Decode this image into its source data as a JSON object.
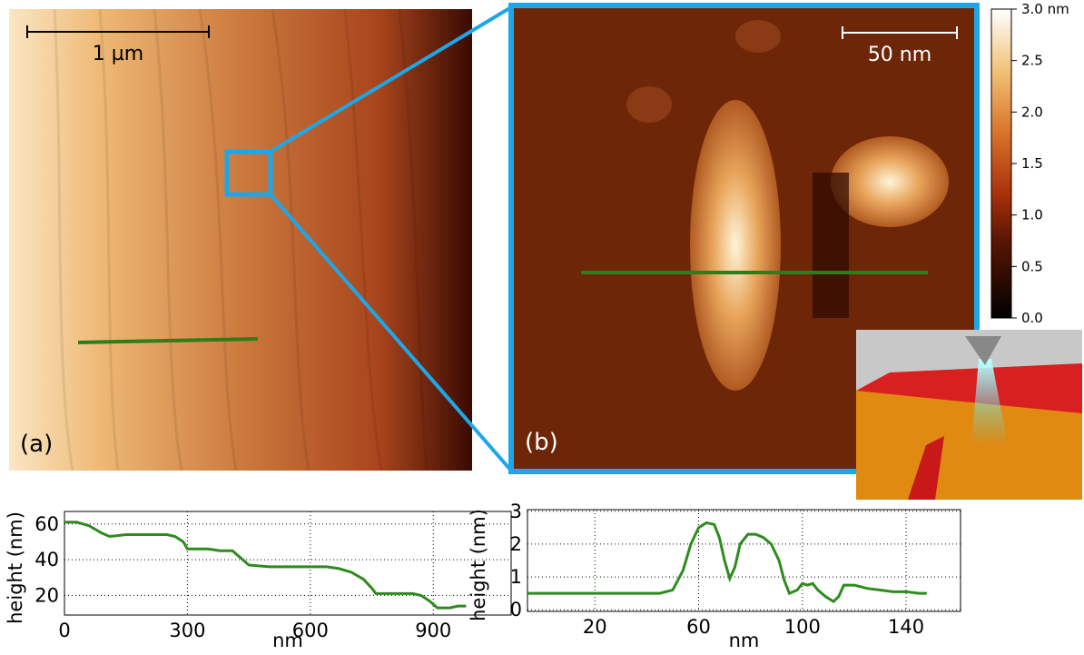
{
  "panels": {
    "a": {
      "label": "(a)",
      "scalebar": "1 µm"
    },
    "b": {
      "label": "(b)",
      "scalebar": "50 nm"
    }
  },
  "colorbar": {
    "ylim": [
      0,
      3
    ],
    "yticks": [
      {
        "value": 0,
        "label": "0.0"
      },
      0.5,
      {
        "value": 1,
        "label": "1.0"
      },
      1.5,
      {
        "value": 2,
        "label": "2.0"
      },
      2.5,
      {
        "value": 3,
        "label": "3.0 nm"
      }
    ]
  },
  "chart_data": [
    {
      "type": "line",
      "x_label": "nm",
      "y_label": "height (nm)",
      "color": "#2e8b1e",
      "x": [
        0,
        30,
        60,
        90,
        110,
        150,
        200,
        250,
        270,
        290,
        300,
        350,
        380,
        410,
        430,
        450,
        500,
        550,
        600,
        640,
        670,
        700,
        730,
        750,
        760,
        800,
        850,
        870,
        890,
        910,
        940,
        960,
        980
      ],
      "values": [
        61,
        61,
        59,
        55,
        53,
        54,
        54,
        54,
        53,
        50,
        46,
        46,
        45,
        45,
        41,
        37,
        36,
        36,
        36,
        36,
        35,
        33,
        29,
        24,
        21,
        21,
        21,
        20,
        17,
        13,
        13,
        14,
        14
      ],
      "xlim": [
        0,
        1090
      ],
      "ylim": [
        9,
        67
      ],
      "xticks": [
        0,
        300,
        600,
        900
      ],
      "yticks": [
        20,
        40,
        60
      ],
      "grid": true
    },
    {
      "type": "line",
      "x_label": "nm",
      "y_label": "height (nm)",
      "color": "#2e8b1e",
      "x": [
        -6,
        10,
        30,
        45,
        50,
        54,
        57,
        60,
        63,
        66,
        68,
        70,
        72,
        74,
        76,
        79,
        82,
        85,
        88,
        91,
        93,
        95,
        98,
        100,
        102,
        104,
        106,
        109,
        112,
        114,
        116,
        120,
        125,
        130,
        135,
        140,
        145,
        148
      ],
      "values": [
        0.5,
        0.5,
        0.5,
        0.5,
        0.6,
        1.2,
        2.0,
        2.5,
        2.65,
        2.6,
        2.2,
        1.5,
        0.95,
        1.3,
        2.0,
        2.3,
        2.3,
        2.2,
        2.0,
        1.5,
        0.9,
        0.5,
        0.6,
        0.8,
        0.75,
        0.8,
        0.6,
        0.4,
        0.25,
        0.4,
        0.75,
        0.75,
        0.65,
        0.6,
        0.55,
        0.55,
        0.5,
        0.5
      ],
      "xlim": [
        -6,
        161
      ],
      "ylim": [
        -0.05,
        3.05
      ],
      "xticks": [
        20,
        60,
        100,
        140
      ],
      "yticks": [
        0,
        1,
        2,
        3
      ],
      "grid": true
    }
  ]
}
